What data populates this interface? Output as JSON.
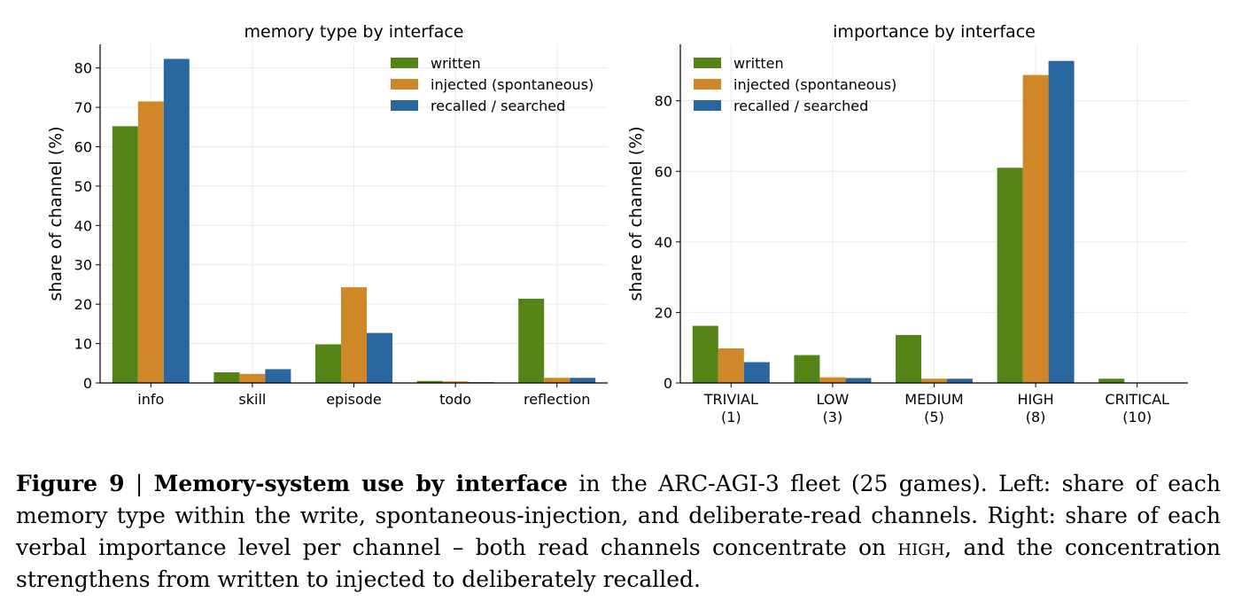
{
  "colors": {
    "written": "#548415",
    "injected": "#d08727",
    "recalled": "#2a67a0"
  },
  "chart_data": [
    {
      "type": "bar",
      "title": "memory type by interface",
      "xlabel": "",
      "ylabel": "share of channel (%)",
      "ylim": [
        0,
        86
      ],
      "yticks": [
        0,
        10,
        20,
        30,
        40,
        50,
        60,
        70,
        80
      ],
      "grid": true,
      "legend_position": "top-right",
      "categories": [
        "info",
        "skill",
        "episode",
        "todo",
        "reflection"
      ],
      "series": [
        {
          "name": "written",
          "values": [
            65.2,
            2.7,
            9.8,
            0.5,
            21.4
          ]
        },
        {
          "name": "injected (spontaneous)",
          "values": [
            71.5,
            2.3,
            24.3,
            0.4,
            1.3
          ]
        },
        {
          "name": "recalled / searched",
          "values": [
            82.3,
            3.5,
            12.7,
            0.2,
            1.3
          ]
        }
      ]
    },
    {
      "type": "bar",
      "title": "importance by interface",
      "xlabel": "",
      "ylabel": "share of channel (%)",
      "ylim": [
        0,
        96
      ],
      "yticks": [
        0,
        20,
        40,
        60,
        80
      ],
      "grid": true,
      "legend_position": "top-left",
      "categories": [
        "TRIVIAL\n(1)",
        "LOW\n(3)",
        "MEDIUM\n(5)",
        "HIGH\n(8)",
        "CRITICAL\n(10)"
      ],
      "series": [
        {
          "name": "written",
          "values": [
            16.2,
            7.9,
            13.6,
            61.0,
            1.2
          ]
        },
        {
          "name": "injected (spontaneous)",
          "values": [
            9.8,
            1.6,
            1.2,
            87.3,
            0.0
          ]
        },
        {
          "name": "recalled / searched",
          "values": [
            5.9,
            1.4,
            1.2,
            91.3,
            0.0
          ]
        }
      ]
    }
  ],
  "caption": {
    "label": "Figure 9",
    "separator": "|",
    "title": "Memory-system use by interface",
    "text_1": "in the ARC-AGI-3 fleet (25 games). Left: share of each memory type within the write, spontaneous-injection, and deliberate-read channels. Right: share of each verbal importance level per channel – both read channels concentrate on",
    "emph": "high",
    "text_2": ", and the concentration strengthens from written to injected to deliberately recalled."
  }
}
